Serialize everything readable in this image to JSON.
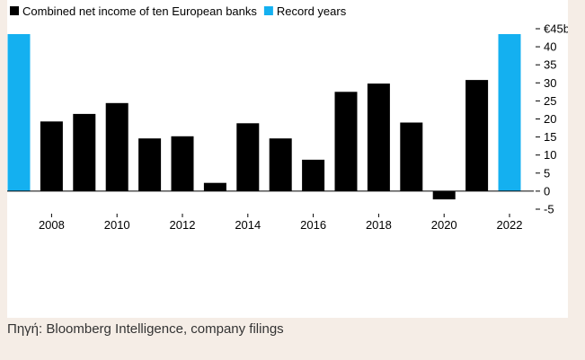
{
  "chart_data": {
    "type": "bar",
    "legend": [
      {
        "name": "Combined net income of ten European banks",
        "color": "#000000"
      },
      {
        "name": "Record years",
        "color": "#14b0f0"
      }
    ],
    "categories": [
      "2007",
      "2008",
      "2009",
      "2010",
      "2011",
      "2012",
      "2013",
      "2014",
      "2015",
      "2016",
      "2017",
      "2018",
      "2019",
      "2020",
      "2021",
      "2022"
    ],
    "values": [
      43.5,
      19.3,
      21.4,
      24.4,
      14.6,
      15.2,
      2.3,
      18.8,
      14.6,
      8.7,
      27.5,
      29.8,
      19.0,
      -2.3,
      30.8,
      43.5
    ],
    "record_years": [
      "2007",
      "2022"
    ],
    "x_tick_labels": [
      "2008",
      "2010",
      "2012",
      "2014",
      "2016",
      "2018",
      "2020",
      "2022"
    ],
    "y_ticks": [
      -5,
      0,
      5,
      10,
      15,
      20,
      25,
      30,
      35,
      40,
      45
    ],
    "y_tick_labels": [
      "-5",
      "0",
      "5",
      "10",
      "15",
      "20",
      "25",
      "30",
      "35",
      "40",
      "€45b"
    ],
    "ylim": [
      -5,
      45
    ],
    "colors": {
      "default": "#000000",
      "record": "#14b0f0"
    },
    "legend_position": "top-left",
    "y_axis_position": "right",
    "grid": false
  },
  "source": "Πηγή: Bloomberg Intelligence, company filings"
}
